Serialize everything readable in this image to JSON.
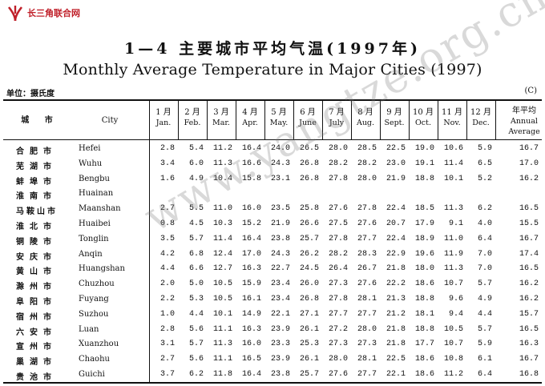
{
  "brand": {
    "name": "长三角联合网",
    "color": "#c0202a"
  },
  "title_cn": "1—4  主要城市平均气温(1997年)",
  "title_en": "Monthly Average Temperature in Major Cities (1997)",
  "unit_label": "单位：摄氏度",
  "unit_symbol": "(C)",
  "header": {
    "city_cn": "城 市",
    "city_en": "City",
    "months": [
      {
        "cn": "1 月",
        "en": "Jan."
      },
      {
        "cn": "2 月",
        "en": "Feb."
      },
      {
        "cn": "3 月",
        "en": "Mar."
      },
      {
        "cn": "4 月",
        "en": "Apr."
      },
      {
        "cn": "5 月",
        "en": "May."
      },
      {
        "cn": "6 月",
        "en": "June"
      },
      {
        "cn": "7 月",
        "en": "July"
      },
      {
        "cn": "8 月",
        "en": "Aug."
      },
      {
        "cn": "9 月",
        "en": "Sept."
      },
      {
        "cn": "10 月",
        "en": "Oct."
      },
      {
        "cn": "11 月",
        "en": "Nov."
      },
      {
        "cn": "12 月",
        "en": "Dec."
      }
    ],
    "annual_cn": "年平均",
    "annual_en1": "Annual",
    "annual_en2": "Average"
  },
  "rows": [
    {
      "cn": "合肥市",
      "en": "Hefei",
      "v": [
        "2.8",
        "5.4",
        "11.2",
        "16.4",
        "24.0",
        "26.5",
        "28.0",
        "28.5",
        "22.5",
        "19.0",
        "10.6",
        "5.9",
        "16.7"
      ]
    },
    {
      "cn": "芜湖市",
      "en": "Wuhu",
      "v": [
        "3.4",
        "6.0",
        "11.3",
        "16.6",
        "24.3",
        "26.8",
        "28.2",
        "28.2",
        "23.0",
        "19.1",
        "11.4",
        "6.5",
        "17.0"
      ]
    },
    {
      "cn": "蚌埠市",
      "en": "Bengbu",
      "v": [
        "1.6",
        "4.9",
        "10.4",
        "15.8",
        "23.1",
        "26.8",
        "27.8",
        "28.0",
        "21.9",
        "18.8",
        "10.1",
        "5.2",
        "16.2"
      ]
    },
    {
      "cn": "淮南市",
      "en": "Huainan",
      "v": [
        "",
        "",
        "",
        "",
        "",
        "",
        "",
        "",
        "",
        "",
        "",
        "",
        ""
      ]
    },
    {
      "cn": "马鞍山市",
      "en": "Maanshan",
      "v": [
        "2.7",
        "5.5",
        "11.0",
        "16.0",
        "23.5",
        "25.8",
        "27.6",
        "27.8",
        "22.4",
        "18.5",
        "11.3",
        "6.2",
        "16.5"
      ]
    },
    {
      "cn": "淮北市",
      "en": "Huaibei",
      "v": [
        "0.8",
        "4.5",
        "10.3",
        "15.2",
        "21.9",
        "26.6",
        "27.5",
        "27.6",
        "20.7",
        "17.9",
        "9.1",
        "4.0",
        "15.5"
      ]
    },
    {
      "cn": "铜陵市",
      "en": "Tonglin",
      "v": [
        "3.5",
        "5.7",
        "11.4",
        "16.4",
        "23.8",
        "25.7",
        "27.8",
        "27.7",
        "22.4",
        "18.9",
        "11.0",
        "6.4",
        "16.7"
      ]
    },
    {
      "cn": "安庆市",
      "en": "Anqin",
      "v": [
        "4.2",
        "6.8",
        "12.4",
        "17.0",
        "24.3",
        "26.2",
        "28.2",
        "28.3",
        "22.9",
        "19.6",
        "11.9",
        "7.0",
        "17.4"
      ]
    },
    {
      "cn": "黄山市",
      "en": "Huangshan",
      "v": [
        "4.4",
        "6.6",
        "12.7",
        "16.3",
        "22.7",
        "24.5",
        "26.4",
        "26.7",
        "21.8",
        "18.0",
        "11.3",
        "7.0",
        "16.5"
      ]
    },
    {
      "cn": "滁州市",
      "en": "Chuzhou",
      "v": [
        "2.0",
        "5.0",
        "10.5",
        "15.9",
        "23.4",
        "26.0",
        "27.3",
        "27.6",
        "22.2",
        "18.6",
        "10.7",
        "5.7",
        "16.2"
      ]
    },
    {
      "cn": "阜阳市",
      "en": "Fuyang",
      "v": [
        "2.2",
        "5.3",
        "10.5",
        "16.1",
        "23.4",
        "26.8",
        "27.8",
        "28.1",
        "21.3",
        "18.8",
        "9.6",
        "4.9",
        "16.2"
      ]
    },
    {
      "cn": "宿州市",
      "en": "Suzhou",
      "v": [
        "1.0",
        "4.4",
        "10.1",
        "14.9",
        "22.1",
        "27.1",
        "27.7",
        "27.7",
        "21.2",
        "18.1",
        "9.4",
        "4.4",
        "15.7"
      ]
    },
    {
      "cn": "六安市",
      "en": "Luan",
      "v": [
        "2.8",
        "5.6",
        "11.1",
        "16.3",
        "23.9",
        "26.1",
        "27.2",
        "28.0",
        "21.8",
        "18.8",
        "10.5",
        "5.7",
        "16.5"
      ]
    },
    {
      "cn": "宣州市",
      "en": "Xuanzhou",
      "v": [
        "3.1",
        "5.7",
        "11.3",
        "16.0",
        "23.3",
        "25.3",
        "27.3",
        "27.3",
        "21.8",
        "17.7",
        "10.7",
        "5.9",
        "16.3"
      ]
    },
    {
      "cn": "巢湖市",
      "en": "Chaohu",
      "v": [
        "2.7",
        "5.6",
        "11.1",
        "16.5",
        "23.9",
        "26.1",
        "28.0",
        "28.1",
        "22.5",
        "18.6",
        "10.8",
        "6.1",
        "16.7"
      ]
    },
    {
      "cn": "贵池市",
      "en": "Guichi",
      "v": [
        "3.7",
        "6.2",
        "11.8",
        "16.4",
        "23.8",
        "25.7",
        "27.6",
        "27.7",
        "22.1",
        "18.6",
        "11.2",
        "6.4",
        "16.8"
      ]
    }
  ],
  "watermark": "www.yangtze.org.cn"
}
